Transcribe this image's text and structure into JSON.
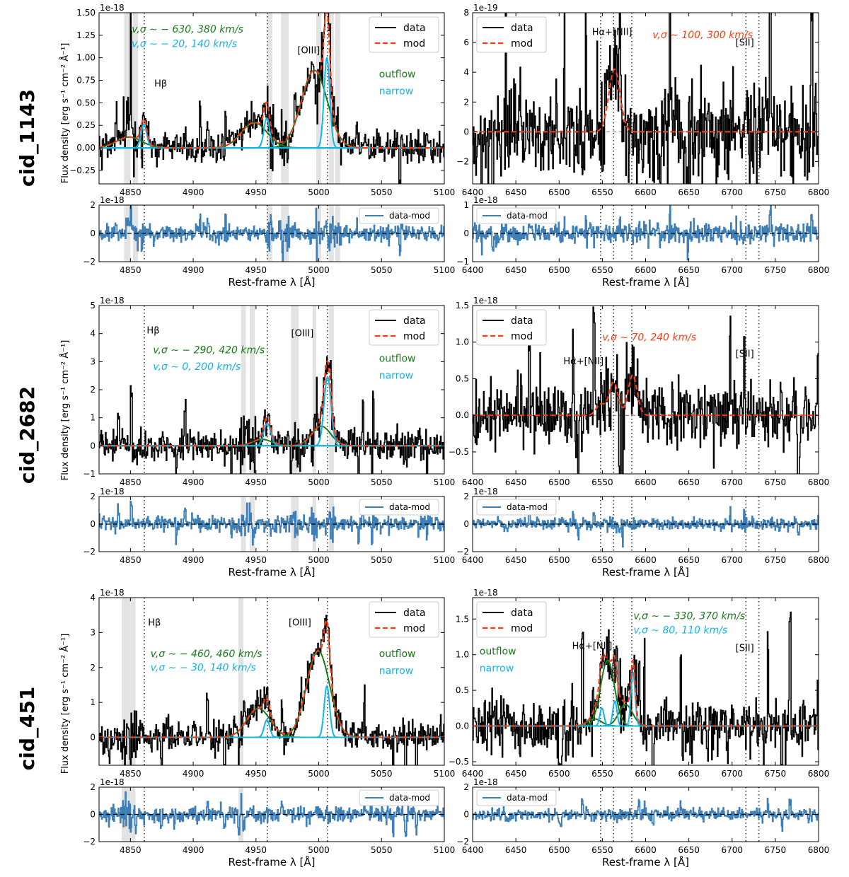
{
  "figure": {
    "row_labels": [
      "cid_1143",
      "cid_2682",
      "cid_451"
    ],
    "ylabel": "Flux density [erg s⁻¹ cm⁻² Å⁻¹]",
    "xlabel": "Rest-frame λ [Å]",
    "legend_data": "data",
    "legend_model": "mod",
    "legend_residual": "data-mod",
    "outflow_label": "outflow",
    "narrow_label": "narrow",
    "colors": {
      "data": "#000000",
      "model": "#ff3b10",
      "outflow": "#1b7a1b",
      "narrow": "#12b5e8",
      "residual": "#3f7fb8",
      "mask": "#e3e3e3"
    }
  },
  "chart_data": [
    {
      "id": "cid_1143_hb_oiii",
      "type": "line",
      "row_label": "cid_1143",
      "xlim": [
        4825,
        5100
      ],
      "ylim": [
        -0.4,
        1.5
      ],
      "exponent_label": "1e-18",
      "xticks": [
        4850,
        4900,
        4950,
        5000,
        5050,
        5100
      ],
      "yticks": [
        -0.25,
        0.0,
        0.25,
        0.5,
        0.75,
        1.0,
        1.25,
        1.5
      ],
      "ytick_labels": [
        "−0.25",
        "0.00",
        "0.25",
        "0.50",
        "0.75",
        "1.00",
        "1.25",
        "1.50"
      ],
      "line_markers": [
        4861,
        4959,
        5007
      ],
      "line_labels": [
        {
          "text": "Hβ",
          "x": 4869,
          "y": 0.68
        },
        {
          "text": "[OIII]",
          "x": 4983,
          "y": 1.05
        }
      ],
      "masks": [
        [
          4845,
          4850
        ],
        [
          4852,
          4856
        ],
        [
          4959,
          4963
        ],
        [
          4970,
          4976
        ],
        [
          4998,
          5002
        ],
        [
          5008,
          5012
        ],
        [
          5013,
          5017
        ]
      ],
      "components": [
        {
          "role": "outflow",
          "line": "Hb",
          "center": 4849,
          "sigma": 10,
          "amp": 0.12
        },
        {
          "role": "narrow",
          "line": "Hb",
          "center": 4860.7,
          "sigma": 2.3,
          "amp": 0.26
        },
        {
          "role": "outflow",
          "line": "OIII4959",
          "center": 4948.6,
          "sigma": 10.3,
          "amp": 0.28
        },
        {
          "role": "narrow",
          "line": "OIII4959",
          "center": 4958.6,
          "sigma": 2.3,
          "amp": 0.33
        },
        {
          "role": "outflow",
          "line": "OIII5007",
          "center": 4996.5,
          "sigma": 10.3,
          "amp": 0.86
        },
        {
          "role": "narrow",
          "line": "OIII5007",
          "center": 5006.5,
          "sigma": 2.3,
          "amp": 1.0
        }
      ],
      "noise": 0.09,
      "kinematics": [
        {
          "text": "v,σ ∼ − 630, 380 km/s",
          "role": "outflow",
          "x": 4851,
          "y": 1.28
        },
        {
          "text": "v,σ ∼ − 20, 140 km/s",
          "role": "narrow",
          "x": 4851,
          "y": 1.12
        }
      ],
      "legend_pos": "upper-right",
      "comp_labels_pos": [
        5048,
        0.78
      ],
      "residual": {
        "ylim": [
          -2,
          2
        ],
        "yticks": [
          -2,
          0,
          2
        ],
        "exponent_label": "1e-18",
        "noise": 0.3
      }
    },
    {
      "id": "cid_1143_ha_nii",
      "type": "line",
      "row_label": "cid_1143",
      "xlim": [
        6400,
        6800
      ],
      "ylim": [
        -3.5,
        8
      ],
      "exponent_label": "1e-19",
      "xticks": [
        6400,
        6450,
        6500,
        6550,
        6600,
        6650,
        6700,
        6750,
        6800
      ],
      "yticks": [
        -2,
        0,
        2,
        4,
        6,
        8
      ],
      "ytick_labels": [
        "−2",
        "0",
        "2",
        "4",
        "6",
        "8"
      ],
      "line_markers": [
        6548,
        6563,
        6584,
        6716,
        6731
      ],
      "line_labels": [
        {
          "text": "Hα+[NII]",
          "x": 6538,
          "y": 6.5
        },
        {
          "text": "[SII]",
          "x": 6704,
          "y": 5.8
        }
      ],
      "masks": [],
      "components": [
        {
          "role": "model",
          "line": "Ha",
          "center": 6564,
          "sigma": 6.5,
          "amp": 4.2
        }
      ],
      "noise": 1.7,
      "kinematics": [
        {
          "text": "v,σ ∼ 100, 300 km/s",
          "role": "model",
          "x": 6608,
          "y": 6.3
        }
      ],
      "legend_pos": "upper-left",
      "comp_labels_pos": null,
      "residual": {
        "ylim": [
          -1,
          1
        ],
        "yticks": [
          -1,
          0,
          1
        ],
        "exponent_label": "1e-18",
        "noise": 0.18
      }
    },
    {
      "id": "cid_2682_hb_oiii",
      "type": "line",
      "row_label": "cid_2682",
      "xlim": [
        4825,
        5100
      ],
      "ylim": [
        -1,
        5
      ],
      "exponent_label": "1e-18",
      "xticks": [
        4850,
        4900,
        4950,
        5000,
        5050,
        5100
      ],
      "yticks": [
        -1,
        0,
        1,
        2,
        3,
        4,
        5
      ],
      "ytick_labels": [
        "−1",
        "0",
        "1",
        "2",
        "3",
        "4",
        "5"
      ],
      "line_markers": [
        4861,
        4959,
        5007
      ],
      "line_labels": [
        {
          "text": "Hβ",
          "x": 4863,
          "y": 4.0
        },
        {
          "text": "[OIII]",
          "x": 4978,
          "y": 3.9
        }
      ],
      "masks": [
        [
          4938,
          4942
        ],
        [
          4945,
          4949
        ],
        [
          4978,
          4984
        ],
        [
          4995,
          4998
        ],
        [
          5008,
          5012
        ]
      ],
      "components": [
        {
          "role": "outflow",
          "line": "OIII4959",
          "center": 4955,
          "sigma": 7.5,
          "amp": 0.23
        },
        {
          "role": "narrow",
          "line": "OIII4959",
          "center": 4959,
          "sigma": 2.8,
          "amp": 0.8
        },
        {
          "role": "outflow",
          "line": "OIII5007",
          "center": 5002,
          "sigma": 7.5,
          "amp": 0.7
        },
        {
          "role": "narrow",
          "line": "OIII5007",
          "center": 5007,
          "sigma": 2.8,
          "amp": 2.45
        }
      ],
      "noise": 0.28,
      "kinematics": [
        {
          "text": "v,σ ∼ − 290, 420 km/s",
          "role": "outflow",
          "x": 4868,
          "y": 3.3
        },
        {
          "text": "v,σ ∼ 0, 200 km/s",
          "role": "narrow",
          "x": 4868,
          "y": 2.7
        }
      ],
      "legend_pos": "upper-right",
      "comp_labels_pos": [
        5048,
        3.0
      ],
      "residual": {
        "ylim": [
          -2,
          2
        ],
        "yticks": [
          -2,
          0,
          2
        ],
        "exponent_label": "1e-18",
        "noise": 0.3
      }
    },
    {
      "id": "cid_2682_ha_nii",
      "type": "line",
      "row_label": "cid_2682",
      "xlim": [
        6400,
        6800
      ],
      "ylim": [
        -0.8,
        1.5
      ],
      "exponent_label": "1e-18",
      "xticks": [
        6400,
        6450,
        6500,
        6550,
        6600,
        6650,
        6700,
        6750,
        6800
      ],
      "yticks": [
        -0.5,
        0.0,
        0.5,
        1.0,
        1.5
      ],
      "ytick_labels": [
        "−0.5",
        "0.0",
        "0.5",
        "1.0",
        "1.5"
      ],
      "line_markers": [
        6548,
        6563,
        6584,
        6716,
        6731
      ],
      "line_labels": [
        {
          "text": "Hα+[NII]",
          "x": 6505,
          "y": 0.7
        },
        {
          "text": "[SII]",
          "x": 6704,
          "y": 0.8
        }
      ],
      "masks": [],
      "components": [
        {
          "role": "model",
          "line": "NII6548",
          "center": 6548,
          "sigma": 5.2,
          "amp": 0.15
        },
        {
          "role": "model",
          "line": "Ha",
          "center": 6563,
          "sigma": 5.2,
          "amp": 0.45
        },
        {
          "role": "model",
          "line": "NII6584",
          "center": 6585,
          "sigma": 5.2,
          "amp": 0.55
        }
      ],
      "noise": 0.22,
      "kinematics": [
        {
          "text": "v,σ ∼ 70, 240 km/s",
          "role": "model",
          "x": 6550,
          "y": 1.02
        }
      ],
      "legend_pos": "upper-left",
      "comp_labels_pos": null,
      "residual": {
        "ylim": [
          -2,
          2
        ],
        "yticks": [
          -2,
          0,
          2
        ],
        "exponent_label": "1e-18",
        "noise": 0.22
      }
    },
    {
      "id": "cid_451_hb_oiii",
      "type": "line",
      "row_label": "cid_451",
      "xlim": [
        4825,
        5100
      ],
      "ylim": [
        -0.8,
        4
      ],
      "exponent_label": "1e-18",
      "xticks": [
        4850,
        4900,
        4950,
        5000,
        5050,
        5100
      ],
      "yticks": [
        0,
        1,
        2,
        3,
        4
      ],
      "ytick_labels": [
        "0",
        "1",
        "2",
        "3",
        "4"
      ],
      "line_markers": [
        4861,
        4959,
        5007
      ],
      "line_labels": [
        {
          "text": "Hβ",
          "x": 4864,
          "y": 3.2
        },
        {
          "text": "[OIII]",
          "x": 4976,
          "y": 3.2
        }
      ],
      "masks": [
        [
          4843,
          4850
        ],
        [
          4850,
          4854
        ],
        [
          4936,
          4940
        ]
      ],
      "components": [
        {
          "role": "outflow",
          "line": "OIII4959",
          "center": 4952,
          "sigma": 9.2,
          "amp": 0.83
        },
        {
          "role": "narrow",
          "line": "OIII4959",
          "center": 4958.7,
          "sigma": 2.2,
          "amp": 0.5
        },
        {
          "role": "outflow",
          "line": "OIII5007",
          "center": 4999.5,
          "sigma": 9.2,
          "amp": 2.47
        },
        {
          "role": "narrow",
          "line": "OIII5007",
          "center": 5006.5,
          "sigma": 2.2,
          "amp": 1.47
        }
      ],
      "noise": 0.22,
      "kinematics": [
        {
          "text": "v,σ ∼ − 460, 460 km/s",
          "role": "outflow",
          "x": 4866,
          "y": 2.3
        },
        {
          "text": "v,σ ∼ − 30, 140 km/s",
          "role": "narrow",
          "x": 4866,
          "y": 1.9
        }
      ],
      "legend_pos": "upper-right",
      "comp_labels_pos": [
        5048,
        2.3
      ],
      "residual": {
        "ylim": [
          -2,
          2
        ],
        "yticks": [
          -2,
          0,
          2
        ],
        "exponent_label": "1e-18",
        "noise": 0.3
      }
    },
    {
      "id": "cid_451_ha_nii",
      "type": "line",
      "row_label": "cid_451",
      "xlim": [
        6400,
        6800
      ],
      "ylim": [
        -0.55,
        1.8
      ],
      "exponent_label": "1e-18",
      "xticks": [
        6400,
        6450,
        6500,
        6550,
        6600,
        6650,
        6700,
        6750,
        6800
      ],
      "yticks": [
        -0.5,
        0.0,
        0.5,
        1.0,
        1.5
      ],
      "ytick_labels": [
        "−0.5",
        "0.0",
        "0.5",
        "1.0",
        "1.5"
      ],
      "line_markers": [
        6548,
        6563,
        6584,
        6716,
        6731
      ],
      "line_labels": [
        {
          "text": "Hα+[NII]",
          "x": 6515,
          "y": 1.08
        },
        {
          "text": "[SII]",
          "x": 6704,
          "y": 1.05
        }
      ],
      "masks": [],
      "components": [
        {
          "role": "outflow",
          "line": "NII6548",
          "center": 6541,
          "sigma": 8,
          "amp": 0.1
        },
        {
          "role": "outflow",
          "line": "Ha",
          "center": 6556,
          "sigma": 8,
          "amp": 0.92
        },
        {
          "role": "outflow",
          "line": "NII6584",
          "center": 6577,
          "sigma": 8,
          "amp": 0.3
        },
        {
          "role": "narrow",
          "line": "NII6548",
          "center": 6549.5,
          "sigma": 2.4,
          "amp": 0.25
        },
        {
          "role": "narrow",
          "line": "Ha",
          "center": 6564.5,
          "sigma": 2.4,
          "amp": 0.35
        },
        {
          "role": "narrow",
          "line": "NII6584",
          "center": 6585.5,
          "sigma": 2.4,
          "amp": 0.75
        }
      ],
      "noise": 0.2,
      "kinematics": [
        {
          "text": "v,σ ∼ − 330, 370 km/s",
          "role": "outflow",
          "x": 6586,
          "y": 1.5
        },
        {
          "text": "v,σ ∼ 80, 110 km/s",
          "role": "narrow",
          "x": 6586,
          "y": 1.3
        }
      ],
      "legend_pos": "upper-left",
      "comp_labels_pos": [
        6408,
        1.0
      ],
      "residual": {
        "ylim": [
          -2,
          2
        ],
        "yticks": [
          -2,
          0,
          2
        ],
        "exponent_label": "1e-18",
        "noise": 0.22
      }
    }
  ]
}
